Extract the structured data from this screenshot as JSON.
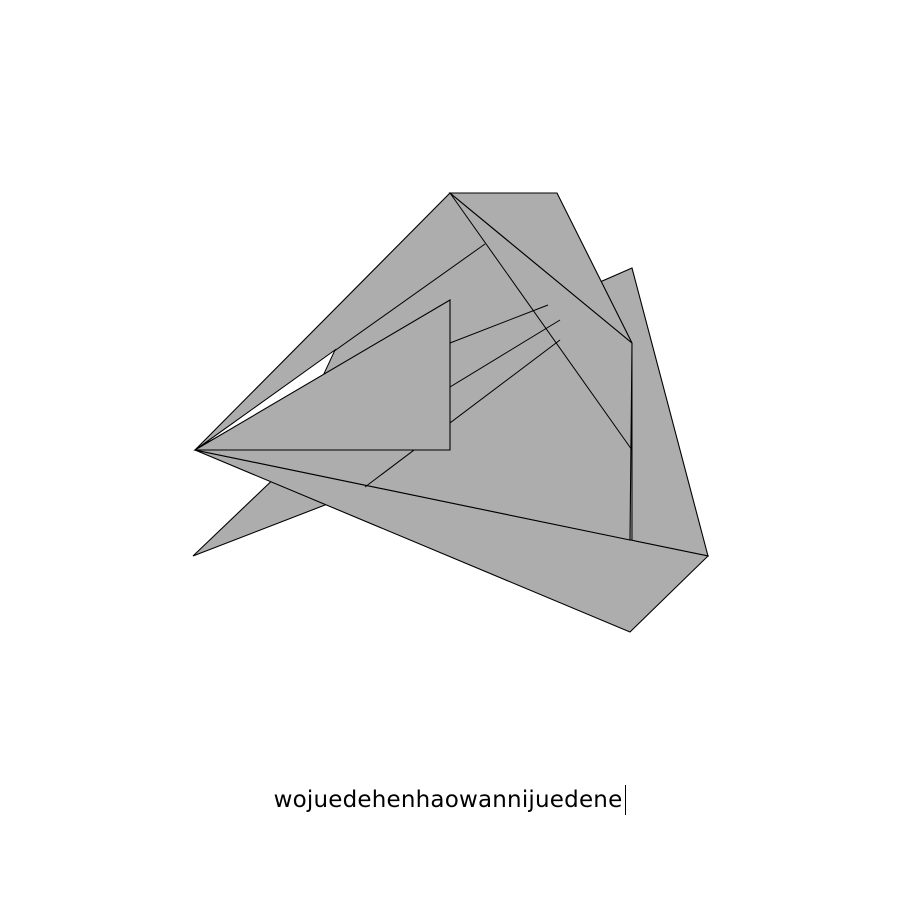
{
  "puzzle": {
    "typed_text": "wojuedehenhaowannijuedene",
    "piece_fill_color": "#adadad",
    "edge_color": "#000000",
    "background_color": "#ffffff"
  }
}
